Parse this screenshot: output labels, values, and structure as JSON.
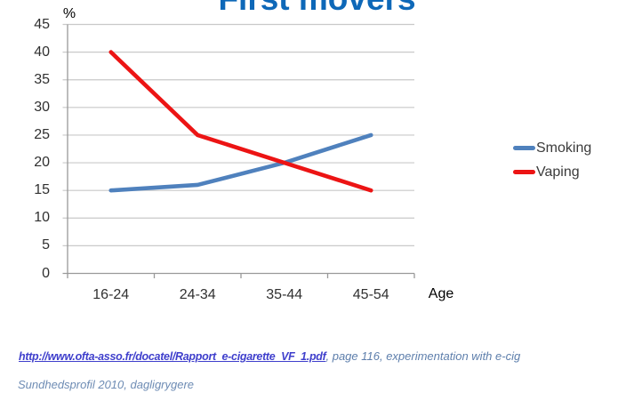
{
  "title": {
    "text": "First movers",
    "color": "#0E68B8"
  },
  "chart_data": {
    "type": "line",
    "title": "First movers",
    "categories": [
      "16-24",
      "24-34",
      "35-44",
      "45-54"
    ],
    "series": [
      {
        "name": "Smoking",
        "color": "#4F81BD",
        "values": [
          15,
          16,
          20,
          25
        ]
      },
      {
        "name": "Vaping",
        "color": "#EC1414",
        "values": [
          40,
          25,
          20,
          15
        ]
      }
    ],
    "xlabel": "Age",
    "ylabel": "%",
    "ylim": [
      0,
      45
    ],
    "ytick_step": 5,
    "grid": true,
    "legend_position": "right",
    "grid_color": "#C9C9C9",
    "axis_color": "#999999",
    "tick_label_color": "#303030",
    "legend_text_color": "#3B3B3B"
  },
  "citations": {
    "line1_link": "http://www.ofta-asso.fr/docatel/Rapport_e-cigarette_VF_1.pdf",
    "line1_rest": ", page 116, experimentation with e-cig",
    "line2": "Sundhedsprofil 2010, dagligrygere",
    "link_color": "#3F3FCC",
    "note_color": "#5E7FAC",
    "line2_color": "#6E8CB4"
  }
}
